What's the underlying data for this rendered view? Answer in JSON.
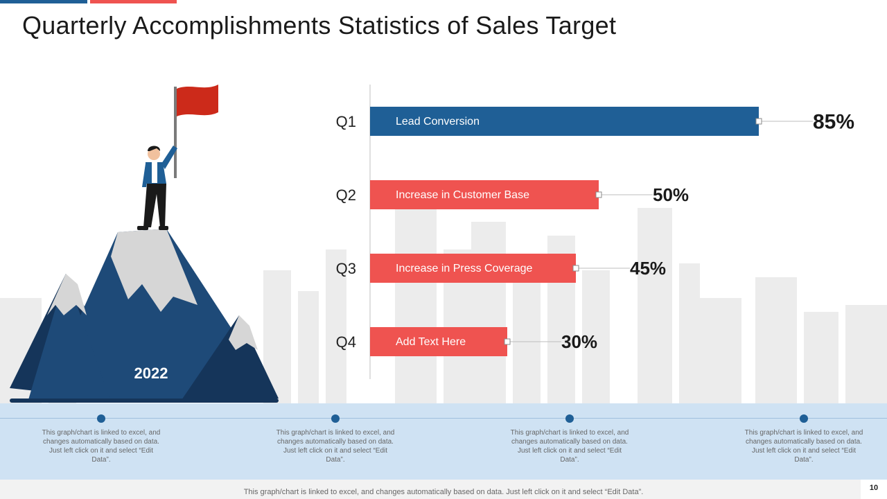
{
  "title": "Quarterly Accomplishments Statistics of Sales Target",
  "colors": {
    "blue": "#1f5f96",
    "red": "#ef5350",
    "timeline_band": "#cfe2f3",
    "timeline_line": "#9fc0de",
    "timeline_dot": "#1f5f96",
    "city": "#ececec",
    "mountain_dark": "#15355a",
    "mountain_mid": "#1e4a78",
    "snow": "#d6d6d6",
    "flag": "#cc2a1a"
  },
  "illustration": {
    "year": "2022",
    "icons": [
      "mountain-icon",
      "person-icon",
      "flag-icon",
      "city-skyline-icon"
    ]
  },
  "chart_data": {
    "type": "bar",
    "orientation": "horizontal",
    "categories": [
      "Q1",
      "Q2",
      "Q3",
      "Q4"
    ],
    "values": [
      85,
      50,
      45,
      30
    ],
    "bar_labels": [
      "Lead Conversion",
      "Increase  in Customer Base",
      "Increase  in Press Coverage",
      "Add Text Here"
    ],
    "value_labels": [
      "85%",
      "50%",
      "45%",
      "30%"
    ],
    "bar_colors": [
      "#1f5f96",
      "#ef5350",
      "#ef5350",
      "#ef5350"
    ],
    "xlim": [
      0,
      100
    ],
    "grid": false,
    "legend": "none"
  },
  "timeline": {
    "notes": [
      "This graph/chart is linked to excel, and changes automatically based on data. Just left click on it and select “Edit Data”.",
      "This graph/chart is linked to excel, and changes automatically based on data. Just left click on it and select “Edit Data”.",
      "This graph/chart is linked to excel, and changes automatically based on data. Just left click on it and select “Edit Data”.",
      "This graph/chart is linked to excel, and changes automatically based on data. Just left click on it and select “Edit Data”."
    ]
  },
  "footer": {
    "note": "This graph/chart is linked to excel,  and changes automatically based on data. Just left click on it and select “Edit Data”.",
    "page_number": "10"
  }
}
